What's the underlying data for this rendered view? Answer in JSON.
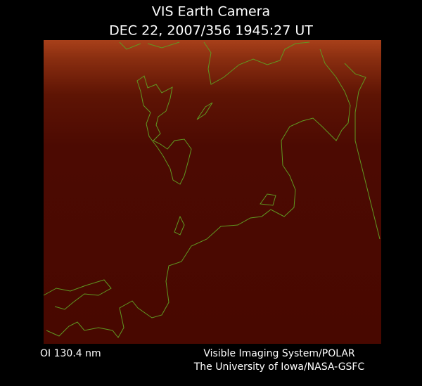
{
  "header": {
    "title": "VIS Earth Camera",
    "timestamp": "DEC 22, 2007/356 1945:27 UT"
  },
  "footer": {
    "wavelength": "OI  130.4 nm",
    "instrument": "Visible Imaging System/POLAR",
    "credit": "The University of Iowa/NASA-GSFC"
  }
}
